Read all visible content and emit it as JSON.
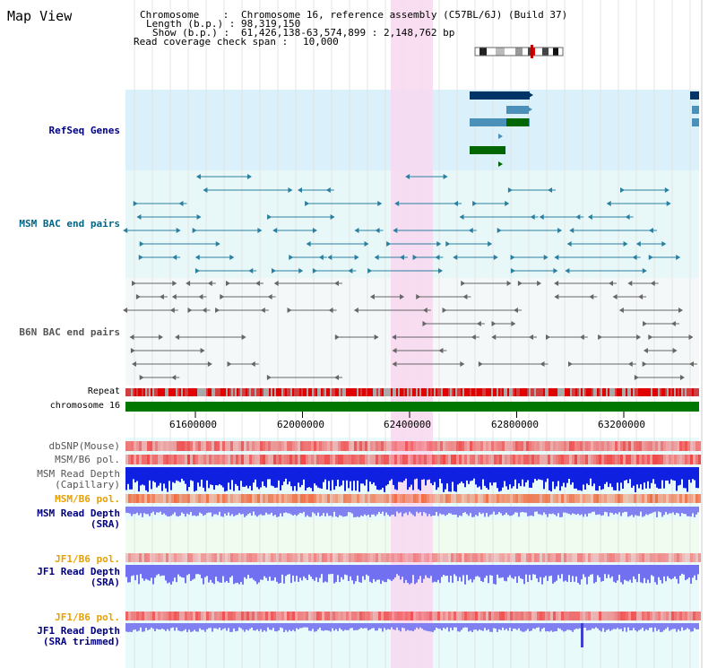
{
  "title": "Map View",
  "header": {
    "chromosome_label": "Chromosome    :",
    "chromosome_value": "Chromosome 16, reference assembly (C57BL/6J) (Build 37)",
    "length_label": "Length (b.p.) :",
    "length_value": "98,319,150",
    "show_label": "Show (b.p.) :",
    "show_value": "61,426,138-63,574,899 : 2,148,762 bp",
    "read_cov_label": "Read coverage check span :",
    "read_cov_value": "10,000"
  },
  "tracks": {
    "refseq": "RefSeq Genes",
    "msm_bac": "MSM BAC end pairs",
    "b6n_bac": "B6N BAC end pairs",
    "repeat": "Repeat",
    "chromosome": "chromosome 16",
    "dbsnp": "dbSNP(Mouse)",
    "msm_b6_pol": "MSM/B6 pol.",
    "msm_read_cap_1": "MSM Read Depth",
    "msm_read_cap_2": "(Capillary)",
    "msm_b6_pol2": "MSM/B6 pol.",
    "msm_read_sra_1": "MSM Read Depth",
    "msm_read_sra_2": "(SRA)",
    "jf1_b6_pol": "JF1/B6 pol.",
    "jf1_read_sra_1": "JF1 Read Depth",
    "jf1_read_sra_2": "(SRA)",
    "jf1_b6_pol2": "JF1/B6 pol.",
    "jf1_read_trim_1": "JF1 Read Depth",
    "jf1_read_trim_2": "(SRA trimmed)"
  },
  "axis_ticks": [
    "61600000",
    "62000000",
    "62400000",
    "62800000",
    "63200000"
  ],
  "colors": {
    "refseq_bg": "#daf0fa",
    "bac_bg": "#e8f8f8",
    "highlight": "#f8d8f0",
    "gene_dark": "#003366",
    "gene_mid": "#4a90b8",
    "gene_green": "#006600",
    "chrom_green": "#007700",
    "repeat_red": "#e00000"
  }
}
